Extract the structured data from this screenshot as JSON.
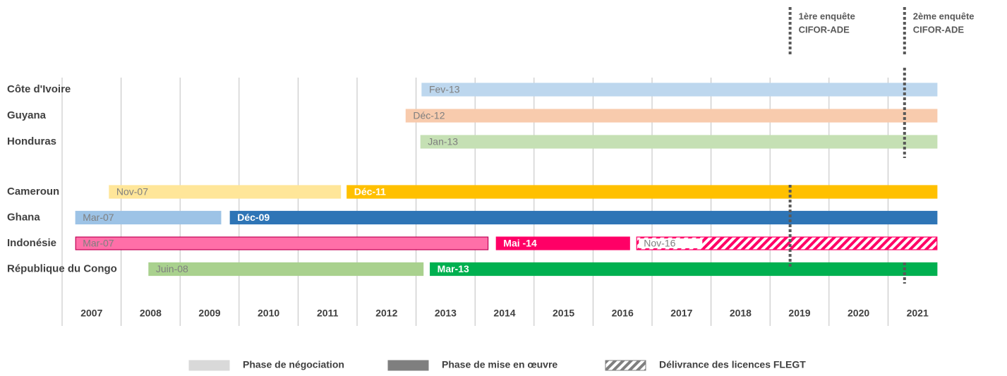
{
  "chart_data": {
    "type": "gantt",
    "xlim": [
      2007,
      2022
    ],
    "xticks": [
      {
        "value": 2007.5,
        "label": "2007"
      },
      {
        "value": 2008.5,
        "label": "2008"
      },
      {
        "value": 2009.5,
        "label": "2009"
      },
      {
        "value": 2010.5,
        "label": "2010"
      },
      {
        "value": 2011.5,
        "label": "2011"
      },
      {
        "value": 2012.5,
        "label": "2012"
      },
      {
        "value": 2013.5,
        "label": "2013"
      },
      {
        "value": 2014.5,
        "label": "2014"
      },
      {
        "value": 2015.5,
        "label": "2015"
      },
      {
        "value": 2016.5,
        "label": "2016"
      },
      {
        "value": 2017.5,
        "label": "2017"
      },
      {
        "value": 2018.5,
        "label": "2018"
      },
      {
        "value": 2019.5,
        "label": "2019"
      },
      {
        "value": 2020.5,
        "label": "2020"
      },
      {
        "value": 2021.5,
        "label": "2021"
      }
    ],
    "grid_lines": [
      2007,
      2008,
      2009,
      2010,
      2011,
      2012,
      2013,
      2014,
      2015,
      2016,
      2017,
      2018,
      2019,
      2020,
      2021
    ],
    "legend": [
      {
        "name": "Phase de négociation",
        "color": "#d9d9d9"
      },
      {
        "name": "Phase de mise en œuvre",
        "color": "#7f7f7f"
      },
      {
        "name": "Délivrance des licences FLEGT",
        "color": "#7f7f7f",
        "hatched": true
      }
    ],
    "rows": [
      {
        "name": "Côte d'Ivoire",
        "bars": [
          {
            "start": 2013.1,
            "end": 2021.83,
            "label": "Fev-13",
            "phase": 0,
            "color": "#bdd7ee"
          }
        ]
      },
      {
        "name": "Guyana",
        "bars": [
          {
            "start": 2012.83,
            "end": 2021.83,
            "label": "Déc-12",
            "phase": 0,
            "color": "#f8cbad"
          }
        ]
      },
      {
        "name": "Honduras",
        "bars": [
          {
            "start": 2013.08,
            "end": 2021.83,
            "label": "Jan-13",
            "phase": 0,
            "color": "#c5e0b4"
          }
        ]
      },
      {
        "name": "Cameroun",
        "bars": [
          {
            "start": 2007.8,
            "end": 2011.72,
            "label": "Nov-07",
            "phase": 0,
            "color": "#ffe699"
          },
          {
            "start": 2011.83,
            "end": 2021.83,
            "label": "Déc-11",
            "phase": 1,
            "color": "#ffc000"
          }
        ]
      },
      {
        "name": "Ghana",
        "bars": [
          {
            "start": 2007.23,
            "end": 2009.69,
            "label": "Mar-07",
            "phase": 0,
            "color": "#9dc3e6"
          },
          {
            "start": 2009.85,
            "end": 2021.83,
            "label": "Déc-09",
            "phase": 1,
            "color": "#2e75b6"
          }
        ]
      },
      {
        "name": "Indonésie",
        "bars": [
          {
            "start": 2007.23,
            "end": 2014.22,
            "label": "Mar-07",
            "phase": 0,
            "color": "#ff6fa8"
          },
          {
            "start": 2014.36,
            "end": 2016.62,
            "label": "Mai -14",
            "phase": 1,
            "color": "#ff0066"
          },
          {
            "start": 2016.74,
            "end": 2021.83,
            "label": "Nov-16",
            "phase": 2,
            "color": "#ff0066"
          }
        ]
      },
      {
        "name": "République du Congo",
        "bars": [
          {
            "start": 2008.47,
            "end": 2013.12,
            "label": "Juin-08",
            "phase": 0,
            "color": "#a9d18e"
          },
          {
            "start": 2013.24,
            "end": 2021.83,
            "label": "Mar-13",
            "phase": 1,
            "color": "#00b050"
          }
        ]
      }
    ],
    "annotations": [
      {
        "x": 2019.34,
        "lines": [
          "1ère enquête",
          "CIFOR-ADE"
        ]
      },
      {
        "x": 2021.28,
        "lines": [
          "2ème enquête",
          "CIFOR-ADE"
        ]
      }
    ]
  }
}
